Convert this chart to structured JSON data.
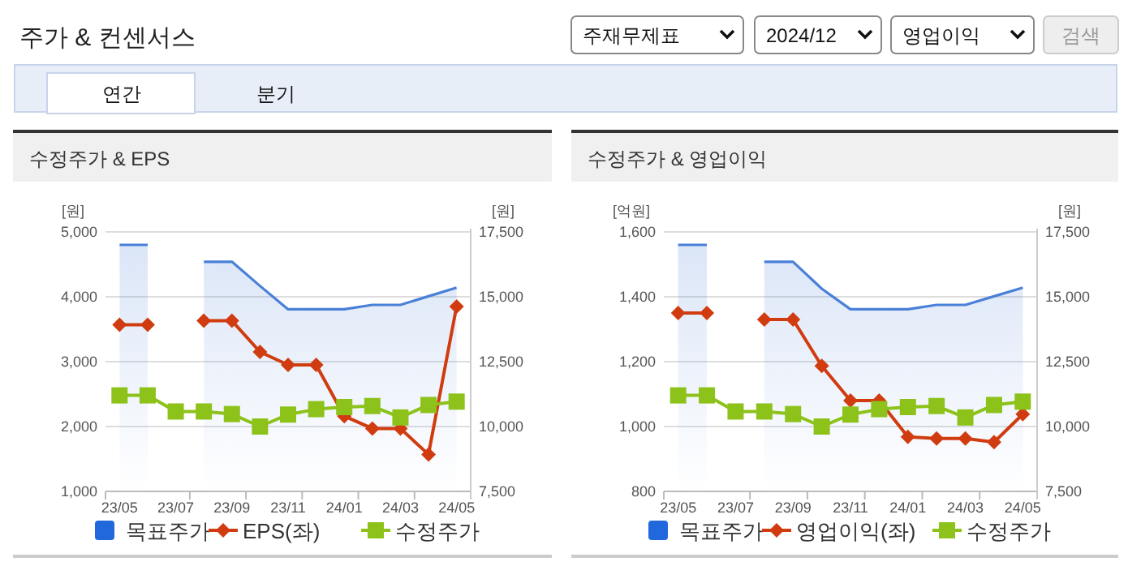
{
  "chart_data": [
    {
      "type": "other",
      "title": "주가 & 컨센서스",
      "annotations": [
        "주재무제표",
        "2024/12",
        "영업이익",
        "검색",
        "연간",
        "분기"
      ]
    },
    {
      "type": "line",
      "title": "수정주가 & EPS",
      "ylabel": "[원]",
      "y2label": "[원]",
      "categories": [
        "23/05",
        null,
        "23/07",
        null,
        "23/09",
        null,
        "23/11",
        null,
        "24/01",
        null,
        "24/03",
        null,
        "24/05"
      ],
      "ylim": [
        1000,
        5000
      ],
      "yticks": [
        {
          "value": 1000,
          "label": "1,000"
        },
        {
          "value": 2000,
          "label": "2,000"
        },
        {
          "value": 3000,
          "label": "3,000"
        },
        {
          "value": 4000,
          "label": "4,000"
        },
        {
          "value": 5000,
          "label": "5,000"
        }
      ],
      "y2lim": [
        7500,
        17500
      ],
      "y2ticks": [
        {
          "value": 7500,
          "label": "7,500"
        },
        {
          "value": 10000,
          "label": "10,000"
        },
        {
          "value": 12500,
          "label": "12,500"
        },
        {
          "value": 15000,
          "label": "15,000"
        },
        {
          "value": 17500,
          "label": "17,500"
        }
      ],
      "grid": "y",
      "legend": "bottom",
      "series": [
        {
          "name": "목표주가",
          "type": "area",
          "axis": "y2",
          "color": "#4a80d8",
          "values": [
            17000,
            17000,
            null,
            16350,
            16350,
            15420,
            14520,
            14520,
            14520,
            14690,
            14690,
            15020,
            15350
          ]
        },
        {
          "name": "EPS(좌)",
          "type": "line",
          "marker": "diamond",
          "color": "#d03c10",
          "values": [
            3570,
            3570,
            null,
            3630,
            3630,
            3150,
            2950,
            2950,
            2160,
            1970,
            1970,
            1570,
            3850
          ]
        },
        {
          "name": "수정주가",
          "type": "line",
          "axis": "y2",
          "marker": "square",
          "color": "#8cc21a",
          "values": [
            11200,
            11200,
            10580,
            10580,
            10480,
            10000,
            10460,
            10670,
            10750,
            10790,
            10350,
            10830,
            10960
          ]
        }
      ]
    },
    {
      "type": "line",
      "title": "수정주가 & 영업이익",
      "ylabel": "[억원]",
      "y2label": "[원]",
      "categories": [
        "23/05",
        null,
        "23/07",
        null,
        "23/09",
        null,
        "23/11",
        null,
        "24/01",
        null,
        "24/03",
        null,
        "24/05"
      ],
      "ylim": [
        800,
        1600
      ],
      "yticks": [
        800,
        {
          "value": 1000,
          "label": "1,000"
        },
        {
          "value": 1200,
          "label": "1,200"
        },
        {
          "value": 1400,
          "label": "1,400"
        },
        {
          "value": 1600,
          "label": "1,600"
        }
      ],
      "y2lim": [
        7500,
        17500
      ],
      "y2ticks": [
        {
          "value": 7500,
          "label": "7,500"
        },
        {
          "value": 10000,
          "label": "10,000"
        },
        {
          "value": 12500,
          "label": "12,500"
        },
        {
          "value": 15000,
          "label": "15,000"
        },
        {
          "value": 17500,
          "label": "17,500"
        }
      ],
      "grid": "y",
      "legend": "bottom",
      "series": [
        {
          "name": "목표주가",
          "type": "area",
          "axis": "y2",
          "color": "#4a80d8",
          "values": [
            17000,
            17000,
            null,
            16350,
            16350,
            15310,
            14520,
            14520,
            14520,
            14690,
            14690,
            15020,
            15350
          ]
        },
        {
          "name": "영업이익(좌)",
          "type": "line",
          "marker": "diamond",
          "color": "#d03c10",
          "values": [
            1350,
            1350,
            null,
            1330,
            1330,
            1187,
            1080,
            1080,
            968,
            963,
            963,
            952,
            1038
          ]
        },
        {
          "name": "수정주가",
          "type": "line",
          "axis": "y2",
          "marker": "square",
          "color": "#8cc21a",
          "values": [
            11200,
            11200,
            10580,
            10580,
            10480,
            10000,
            10460,
            10670,
            10750,
            10790,
            10350,
            10830,
            10960
          ]
        }
      ]
    }
  ]
}
